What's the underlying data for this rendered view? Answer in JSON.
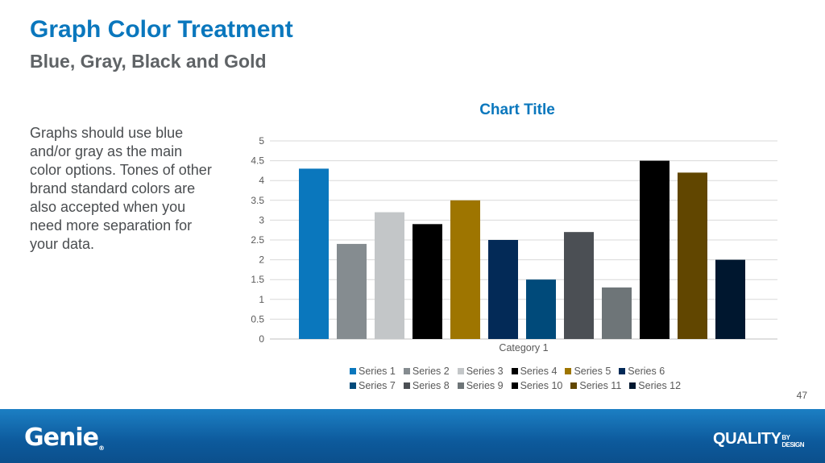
{
  "slide": {
    "title": "Graph Color Treatment",
    "subtitle": "Blue, Gray, Black and Gold",
    "body": "Graphs should use blue and/or gray as the main color options. Tones of other brand standard colors are also accepted when you need more separation for your data.",
    "page_number": "47"
  },
  "footer": {
    "logo_left": "Genie",
    "logo_left_mark": "®",
    "logo_right": "QUALITY",
    "logo_right_by": "BY",
    "logo_right_design": "DESIGN"
  },
  "chart_data": {
    "type": "bar",
    "title": "Chart Title",
    "categories": [
      "Category 1"
    ],
    "ylim": [
      0,
      5
    ],
    "yticks": [
      "0",
      "0.5",
      "1",
      "1.5",
      "2",
      "2.5",
      "3",
      "3.5",
      "4",
      "4.5",
      "5"
    ],
    "grid": true,
    "legend_position": "bottom",
    "series": [
      {
        "name": "Series 1",
        "values": [
          4.3
        ],
        "color": "#0a77bd"
      },
      {
        "name": "Series 2",
        "values": [
          2.4
        ],
        "color": "#858c90"
      },
      {
        "name": "Series 3",
        "values": [
          3.2
        ],
        "color": "#c3c6c8"
      },
      {
        "name": "Series 4",
        "values": [
          2.9
        ],
        "color": "#000000"
      },
      {
        "name": "Series 5",
        "values": [
          3.5
        ],
        "color": "#9e7500"
      },
      {
        "name": "Series 6",
        "values": [
          2.5
        ],
        "color": "#032a57"
      },
      {
        "name": "Series 7",
        "values": [
          1.5
        ],
        "color": "#004a7a"
      },
      {
        "name": "Series 8",
        "values": [
          2.7
        ],
        "color": "#4b4f54"
      },
      {
        "name": "Series 9",
        "values": [
          1.3
        ],
        "color": "#6e7578"
      },
      {
        "name": "Series 10",
        "values": [
          4.5
        ],
        "color": "#000000"
      },
      {
        "name": "Series 11",
        "values": [
          4.2
        ],
        "color": "#614600"
      },
      {
        "name": "Series 12",
        "values": [
          2.0
        ],
        "color": "#00172f"
      }
    ]
  }
}
